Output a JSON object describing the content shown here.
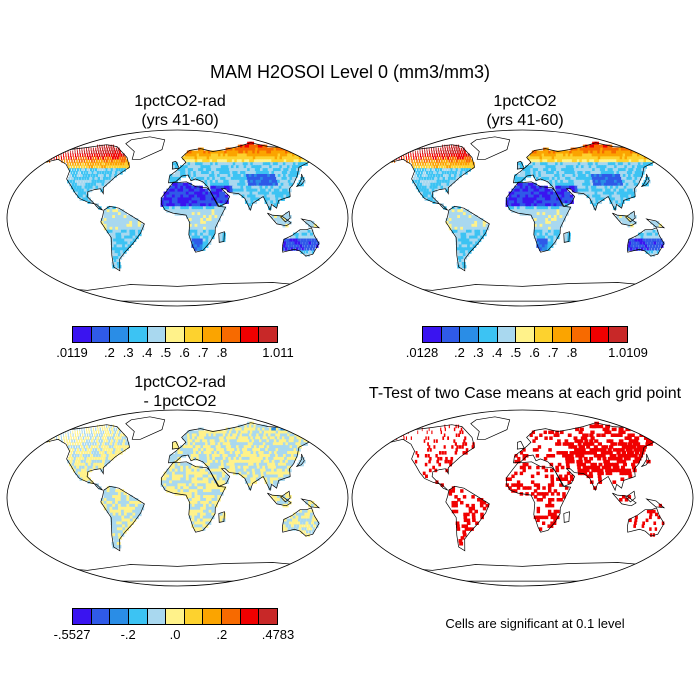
{
  "title": "MAM H2OSOI Level 0 (mm3/mm3)",
  "panels": [
    {
      "id": "p1",
      "title_line1": "1pctCO2-rad",
      "title_line2": "(yrs 41-60)",
      "colorbar": {
        "colors": [
          "#3a14f0",
          "#2f5ae8",
          "#2a8de6",
          "#3cc3f3",
          "#a9d8ef",
          "#fff28a",
          "#fdd22e",
          "#fba400",
          "#f76a00",
          "#f00000",
          "#c82828"
        ],
        "labels": [
          ".0119",
          ".2",
          ".3",
          ".4",
          ".5",
          ".6",
          ".7",
          ".8",
          "1.011"
        ]
      }
    },
    {
      "id": "p2",
      "title_line1": "1pctCO2",
      "title_line2": "(yrs 41-60)",
      "colorbar": {
        "colors": [
          "#3a14f0",
          "#2f5ae8",
          "#2a8de6",
          "#3cc3f3",
          "#a9d8ef",
          "#fff28a",
          "#fdd22e",
          "#fba400",
          "#f76a00",
          "#f00000",
          "#c82828"
        ],
        "labels": [
          ".0128",
          ".2",
          ".3",
          ".4",
          ".5",
          ".6",
          ".7",
          ".8",
          "1.0109"
        ]
      }
    },
    {
      "id": "p3",
      "title_line1": "1pctCO2-rad",
      "title_line2": "- 1pctCO2",
      "colorbar": {
        "colors": [
          "#3a14f0",
          "#2f5ae8",
          "#2a8de6",
          "#3cc3f3",
          "#a9d8ef",
          "#fff28a",
          "#fdd22e",
          "#fba400",
          "#f76a00",
          "#f00000",
          "#c82828"
        ],
        "labels": [
          "-.5527",
          "-.2",
          ".0",
          ".2",
          ".4783"
        ]
      }
    },
    {
      "id": "p4",
      "title_line1": "T-Test of two Case means at each grid point",
      "title_line2": ""
    }
  ],
  "note": "Cells are significant at 0.1 level"
}
